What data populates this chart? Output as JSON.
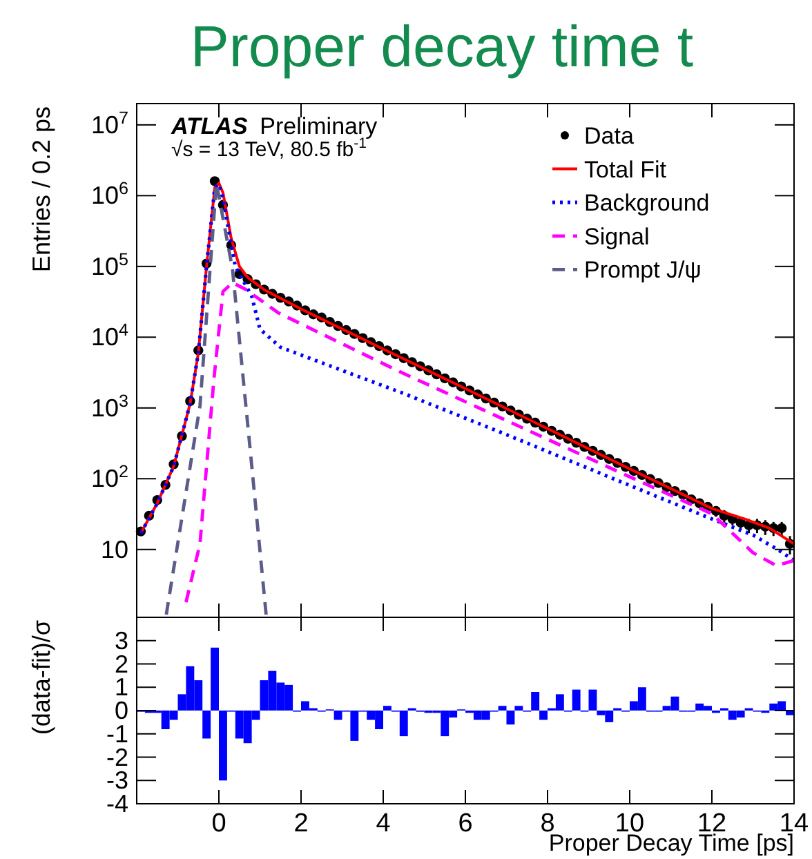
{
  "chart_data": [
    {
      "type": "line",
      "title": "Proper decay time t",
      "ylabel": "Entries / 0.2 ps",
      "annotations": [
        "ATLAS Preliminary",
        "√s = 13 TeV, 80.5 fb$^{-1}$"
      ],
      "series": [
        {
          "name": "Data",
          "type": "scatter",
          "color": "#000000",
          "marker": "circle",
          "x": [
            -1.9,
            -1.7,
            -1.5,
            -1.3,
            -1.1,
            -0.9,
            -0.7,
            -0.5,
            -0.3,
            -0.1,
            0.1,
            0.3,
            0.5,
            0.7,
            0.9,
            1.1,
            1.3,
            1.5,
            1.7,
            1.9,
            2.1,
            2.3,
            2.5,
            2.7,
            2.9,
            3.1,
            3.3,
            3.5,
            3.7,
            3.9,
            4.1,
            4.3,
            4.5,
            4.7,
            4.9,
            5.1,
            5.3,
            5.5,
            5.7,
            5.9,
            6.1,
            6.3,
            6.5,
            6.7,
            6.9,
            7.1,
            7.3,
            7.5,
            7.7,
            7.9,
            8.1,
            8.3,
            8.5,
            8.7,
            8.9,
            9.1,
            9.3,
            9.5,
            9.7,
            9.9,
            10.1,
            10.3,
            10.5,
            10.7,
            10.9,
            11.1,
            11.3,
            11.5,
            11.7,
            11.9,
            12.1,
            12.3,
            12.5,
            12.7,
            12.9,
            13.1,
            13.3,
            13.5,
            13.7,
            13.9
          ],
          "values": [
            18,
            30,
            50,
            82,
            160,
            400,
            1250,
            6500,
            110000,
            1600000,
            740000,
            200000,
            78000,
            66000,
            56000,
            47000,
            41000,
            36000,
            32000,
            28000,
            24000,
            21000,
            19000,
            16400,
            14400,
            12600,
            11100,
            9700,
            8500,
            7500,
            6500,
            5750,
            5050,
            4430,
            3880,
            3400,
            2990,
            2620,
            2300,
            2010,
            1770,
            1550,
            1360,
            1190,
            1050,
            920,
            805,
            706,
            620,
            543,
            476,
            418,
            366,
            322,
            282,
            248,
            217,
            190,
            167,
            147,
            129,
            113,
            99,
            87,
            76,
            67,
            59,
            51,
            45,
            40,
            35,
            30,
            27,
            24,
            22,
            22,
            21,
            20,
            20,
            12
          ],
          "errors": [
            null,
            null,
            null,
            null,
            null,
            null,
            null,
            null,
            null,
            null,
            null,
            null,
            null,
            null,
            null,
            null,
            null,
            null,
            null,
            null,
            null,
            null,
            null,
            null,
            null,
            null,
            null,
            null,
            null,
            null,
            null,
            null,
            null,
            null,
            null,
            null,
            null,
            null,
            null,
            null,
            null,
            null,
            null,
            null,
            null,
            null,
            null,
            null,
            null,
            null,
            null,
            null,
            null,
            null,
            null,
            null,
            null,
            null,
            null,
            null,
            null,
            null,
            null,
            null,
            null,
            8,
            8,
            7,
            7,
            6,
            6,
            6,
            5,
            5,
            5,
            5,
            5,
            4.5,
            4.5,
            3.5
          ]
        },
        {
          "name": "Total Fit",
          "color": "#ff0000",
          "line_style": "solid",
          "x": [
            -1.9,
            -1.5,
            -1.1,
            -0.7,
            -0.5,
            -0.3,
            -0.1,
            0,
            0.1,
            0.3,
            0.5,
            0.7,
            1.1,
            2,
            4,
            6,
            8,
            10,
            12,
            12.8,
            13.4,
            14
          ],
          "values": [
            17,
            45,
            150,
            1150,
            6000,
            100000,
            1300000,
            1500000,
            1100000,
            250000,
            100000,
            70000,
            47000,
            25000,
            6800,
            1880,
            510,
            138,
            38,
            27,
            20,
            12
          ]
        },
        {
          "name": "Background",
          "color": "#0000ff",
          "line_style": "dotted",
          "x": [
            -1.9,
            -1.5,
            -1.1,
            -0.7,
            -0.5,
            -0.3,
            -0.1,
            0,
            0.1,
            0.4,
            0.8,
            1,
            1.5,
            2,
            4.5,
            7,
            9.9,
            12,
            13,
            13.6,
            14
          ],
          "values": [
            17,
            45,
            150,
            1150,
            6000,
            100000,
            1300000,
            1450000,
            900000,
            100000,
            38000,
            13000,
            7200,
            5600,
            1600,
            420,
            85,
            27,
            16,
            10,
            7
          ]
        },
        {
          "name": "Signal",
          "color": "#ff00ff",
          "line_style": "dashed",
          "x": [
            -0.8,
            -0.46,
            -0.12,
            0.1,
            0.33,
            0.66,
            1.45,
            4.48,
            9.87,
            12,
            13,
            13.57,
            14
          ],
          "values": [
            1.8,
            12,
            2600,
            44000,
            59000,
            47000,
            22000,
            3100,
            115,
            32,
            9,
            5.9,
            7
          ]
        },
        {
          "name": "Prompt J/ψ",
          "color": "#5c5c8a",
          "line_style": "dashed",
          "x": [
            -1.28,
            -1.25,
            -0.46,
            -0.06,
            0.33,
            0.77,
            1.1,
            1.15
          ],
          "values": [
            1.2,
            1.55,
            1070,
            1500000,
            93000,
            230,
            2.4,
            1.2
          ]
        }
      ],
      "xlim": [
        -2,
        14
      ],
      "xticks": [
        0,
        2,
        4,
        6,
        8,
        10,
        12,
        14
      ],
      "ylim": [
        1.1,
        20000000
      ],
      "log": true,
      "yticks": [
        10,
        {
          "value": 100,
          "label": "10$^{2}$"
        },
        {
          "value": 1000,
          "label": "10$^{3}$"
        },
        {
          "value": 10000,
          "label": "10$^{4}$"
        },
        {
          "value": 100000,
          "label": "10$^{5}$"
        },
        {
          "value": 1000000,
          "label": "10$^{6}$"
        },
        {
          "value": 10000000,
          "label": "10$^{7}$"
        }
      ],
      "tick_labels": "y",
      "legend": "top right"
    },
    {
      "type": "histogram",
      "ylabel": "(data-fit)/σ",
      "xlabel": "Proper Decay Time [ps]",
      "color": "#0000ff",
      "bins": [
        -2,
        -1.8,
        -1.6,
        -1.4,
        -1.2,
        -1,
        -0.8,
        -0.6,
        -0.4,
        -0.2,
        0,
        0.2,
        0.4,
        0.6,
        0.8,
        1,
        1.2,
        1.4,
        1.6,
        1.8,
        2,
        2.2,
        2.4,
        2.6,
        2.8,
        3,
        3.2,
        3.4,
        3.6,
        3.8,
        4,
        4.2,
        4.4,
        4.6,
        4.8,
        5,
        5.2,
        5.4,
        5.6,
        5.8,
        6,
        6.2,
        6.4,
        6.6,
        6.8,
        7,
        7.2,
        7.4,
        7.6,
        7.8,
        8,
        8.2,
        8.4,
        8.6,
        8.8,
        9,
        9.2,
        9.4,
        9.6,
        9.8,
        10,
        10.2,
        10.4,
        10.6,
        10.8,
        11,
        11.2,
        11.4,
        11.6,
        11.8,
        12,
        12.2,
        12.4,
        12.6,
        12.8,
        13,
        13.2,
        13.4,
        13.6,
        13.8,
        14
      ],
      "values": [
        -0.05,
        -0.1,
        -0.1,
        -0.8,
        -0.4,
        0.7,
        1.9,
        1.3,
        -1.2,
        2.7,
        -3,
        0,
        -1.2,
        -1.4,
        -0.4,
        1.3,
        1.7,
        1.2,
        1.1,
        0,
        0.4,
        0.1,
        0,
        0.05,
        -0.4,
        0,
        -1.3,
        0,
        -0.4,
        -0.8,
        0.2,
        0,
        -1.1,
        0.1,
        -0.05,
        -0.1,
        -0.1,
        -1.1,
        -0.3,
        0.05,
        -0.1,
        -0.4,
        -0.4,
        0,
        0.2,
        -0.6,
        0.2,
        0,
        0.8,
        -0.4,
        0.1,
        0.7,
        0,
        0.9,
        0,
        0.9,
        -0.2,
        -0.5,
        0.1,
        0,
        0.4,
        1,
        0,
        0,
        0.2,
        0.6,
        0,
        0,
        0.3,
        0.2,
        -0.1,
        0.1,
        -0.4,
        -0.3,
        0.1,
        0,
        -0.1,
        0.3,
        0.4,
        -0.2
      ],
      "xlim": [
        -2,
        14
      ],
      "xticks": [
        0,
        2,
        4,
        6,
        8,
        10,
        12,
        14
      ],
      "ylim": [
        -4,
        4
      ],
      "yticks": [
        -4,
        -3,
        -2,
        -1,
        0,
        1,
        2,
        3,
        {
          "value": 4,
          "label": null
        }
      ]
    }
  ]
}
